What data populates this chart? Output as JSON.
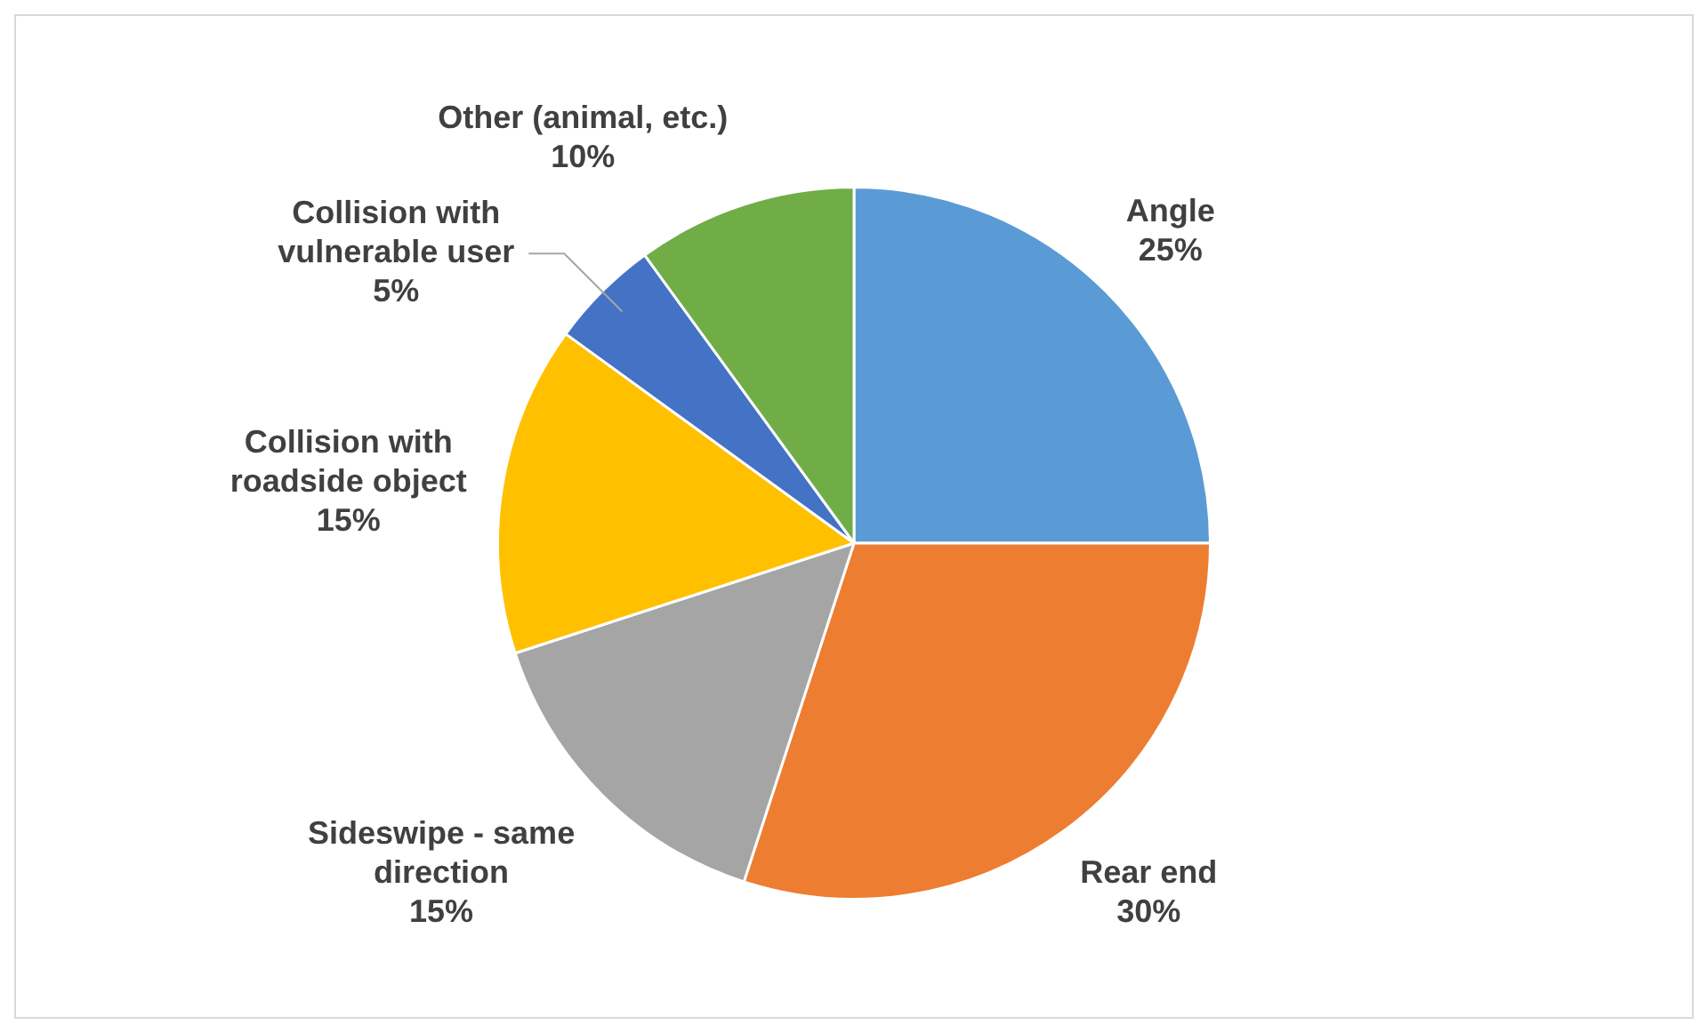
{
  "chart_data": {
    "type": "pie",
    "categories": [
      "Angle",
      "Rear end",
      "Sideswipe - same direction",
      "Collision with roadside object",
      "Collision with vulnerable user",
      "Other (animal, etc.)"
    ],
    "values": [
      25,
      30,
      15,
      15,
      5,
      10
    ],
    "value_labels": [
      "25%",
      "30%",
      "15%",
      "15%",
      "5%",
      "10%"
    ],
    "colors": [
      "#5b9bd5",
      "#ed7d31",
      "#a5a5a5",
      "#ffc000",
      "#4472c4",
      "#70ad47"
    ],
    "legend": false
  }
}
